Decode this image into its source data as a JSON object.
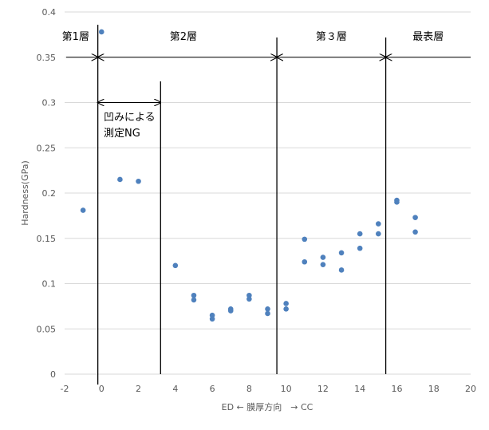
{
  "chart_data": {
    "type": "scatter",
    "title": "",
    "xlabel": "ED ← 膜厚方向　→ CC",
    "ylabel": "Hardness(GPa)",
    "xlim": [
      -2,
      20
    ],
    "ylim": [
      0,
      0.4
    ],
    "x_ticks": [
      -2,
      0,
      2,
      4,
      6,
      8,
      10,
      12,
      14,
      16,
      18,
      20
    ],
    "y_ticks": [
      0,
      0.05,
      0.1,
      0.15,
      0.2,
      0.25,
      0.3,
      0.35,
      0.4
    ],
    "x_tick_labels": [
      "-2",
      "0",
      "2",
      "4",
      "6",
      "8",
      "10",
      "12",
      "14",
      "16",
      "18",
      "20"
    ],
    "y_tick_labels": [
      "0",
      "0.05",
      "0.1",
      "0.15",
      "0.2",
      "0.25",
      "0.3",
      "0.35",
      "0.4"
    ],
    "grid": "horizontal",
    "legend": "none",
    "marker_color": "#4f81bd",
    "points": [
      {
        "x": -1,
        "y": 0.181
      },
      {
        "x": 0,
        "y": 0.378
      },
      {
        "x": 1,
        "y": 0.215
      },
      {
        "x": 2,
        "y": 0.213
      },
      {
        "x": 4,
        "y": 0.12
      },
      {
        "x": 5,
        "y": 0.087
      },
      {
        "x": 5,
        "y": 0.082
      },
      {
        "x": 6,
        "y": 0.065
      },
      {
        "x": 6,
        "y": 0.061
      },
      {
        "x": 7,
        "y": 0.072
      },
      {
        "x": 7,
        "y": 0.07
      },
      {
        "x": 8,
        "y": 0.087
      },
      {
        "x": 8,
        "y": 0.083
      },
      {
        "x": 9,
        "y": 0.072
      },
      {
        "x": 9,
        "y": 0.067
      },
      {
        "x": 10,
        "y": 0.078
      },
      {
        "x": 10,
        "y": 0.072
      },
      {
        "x": 11,
        "y": 0.149
      },
      {
        "x": 11,
        "y": 0.124
      },
      {
        "x": 12,
        "y": 0.129
      },
      {
        "x": 12,
        "y": 0.121
      },
      {
        "x": 13,
        "y": 0.134
      },
      {
        "x": 13,
        "y": 0.115
      },
      {
        "x": 14,
        "y": 0.155
      },
      {
        "x": 14,
        "y": 0.139
      },
      {
        "x": 15,
        "y": 0.166
      },
      {
        "x": 15,
        "y": 0.155
      },
      {
        "x": 16,
        "y": 0.192
      },
      {
        "x": 16,
        "y": 0.19
      },
      {
        "x": 17,
        "y": 0.173
      },
      {
        "x": 17,
        "y": 0.157
      }
    ],
    "annotations": {
      "layers": [
        "第1層",
        "第2層",
        "第３層",
        "最表層"
      ],
      "note_line1": "凹みによる",
      "note_line2": "測定NG",
      "boundaries_x": [
        -0.2,
        9.5,
        15.4
      ],
      "ng_region_x": [
        -0.2,
        3.2
      ],
      "layer_arrow_y": 0.35,
      "ng_arrow_y": 0.3
    }
  }
}
